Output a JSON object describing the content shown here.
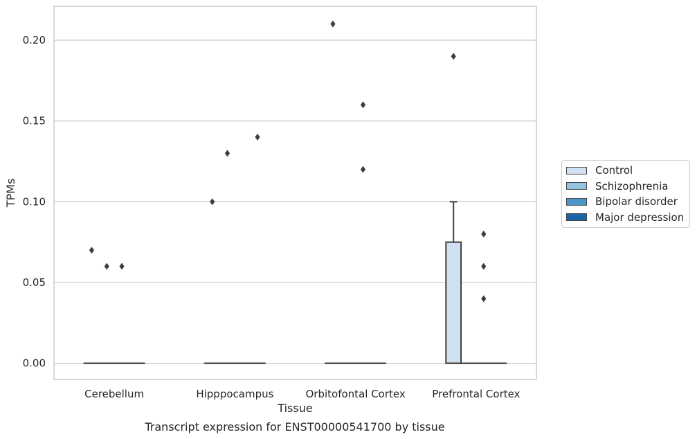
{
  "chart_data": {
    "type": "box",
    "title": "Transcript expression for ENST00000541700 by tissue",
    "xlabel": "Tissue",
    "ylabel": "TPMs",
    "ylim": [
      -0.01,
      0.221
    ],
    "yticks": [
      0.0,
      0.05,
      0.1,
      0.15,
      0.2
    ],
    "ytick_labels": [
      "0.00",
      "0.05",
      "0.10",
      "0.15",
      "0.20"
    ],
    "grid": "horizontal",
    "legend_position": "outside-right",
    "categories": [
      "Cerebellum",
      "Hipppocampus",
      "Orbitofontal Cortex",
      "Prefrontal Cortex"
    ],
    "series": [
      {
        "name": "Control",
        "color": "#d0e1f2",
        "boxes": [
          {
            "q1": 0,
            "median": 0,
            "q3": 0,
            "whisker_low": 0,
            "whisker_high": 0,
            "outliers": [
              0.07
            ]
          },
          {
            "q1": 0,
            "median": 0,
            "q3": 0,
            "whisker_low": 0,
            "whisker_high": 0,
            "outliers": [
              0.1
            ]
          },
          {
            "q1": 0,
            "median": 0,
            "q3": 0,
            "whisker_low": 0,
            "whisker_high": 0,
            "outliers": [
              0.21
            ]
          },
          {
            "q1": 0,
            "median": 0,
            "q3": 0.075,
            "whisker_low": 0,
            "whisker_high": 0.1,
            "outliers": [
              0.19
            ]
          }
        ]
      },
      {
        "name": "Schizophrenia",
        "color": "#94c4df",
        "boxes": [
          {
            "q1": 0,
            "median": 0,
            "q3": 0,
            "whisker_low": 0,
            "whisker_high": 0,
            "outliers": [
              0.06
            ]
          },
          {
            "q1": 0,
            "median": 0,
            "q3": 0,
            "whisker_low": 0,
            "whisker_high": 0,
            "outliers": [
              0.13
            ]
          },
          {
            "q1": 0,
            "median": 0,
            "q3": 0,
            "whisker_low": 0,
            "whisker_high": 0,
            "outliers": []
          },
          {
            "q1": 0,
            "median": 0,
            "q3": 0,
            "whisker_low": 0,
            "whisker_high": 0,
            "outliers": []
          }
        ]
      },
      {
        "name": "Bipolar disorder",
        "color": "#4a98c9",
        "boxes": [
          {
            "q1": 0,
            "median": 0,
            "q3": 0,
            "whisker_low": 0,
            "whisker_high": 0,
            "outliers": [
              0.06
            ]
          },
          {
            "q1": 0,
            "median": 0,
            "q3": 0,
            "whisker_low": 0,
            "whisker_high": 0,
            "outliers": []
          },
          {
            "q1": 0,
            "median": 0,
            "q3": 0,
            "whisker_low": 0,
            "whisker_high": 0,
            "outliers": [
              0.16,
              0.12
            ]
          },
          {
            "q1": 0,
            "median": 0,
            "q3": 0,
            "whisker_low": 0,
            "whisker_high": 0,
            "outliers": [
              0.08,
              0.06,
              0.04
            ]
          }
        ]
      },
      {
        "name": "Major depression",
        "color": "#1764ab",
        "boxes": [
          {
            "q1": 0,
            "median": 0,
            "q3": 0,
            "whisker_low": 0,
            "whisker_high": 0,
            "outliers": []
          },
          {
            "q1": 0,
            "median": 0,
            "q3": 0,
            "whisker_low": 0,
            "whisker_high": 0,
            "outliers": [
              0.14
            ]
          },
          {
            "q1": 0,
            "median": 0,
            "q3": 0,
            "whisker_low": 0,
            "whisker_high": 0,
            "outliers": []
          },
          {
            "q1": 0,
            "median": 0,
            "q3": 0,
            "whisker_low": 0,
            "whisker_high": 0,
            "outliers": []
          }
        ]
      }
    ]
  }
}
